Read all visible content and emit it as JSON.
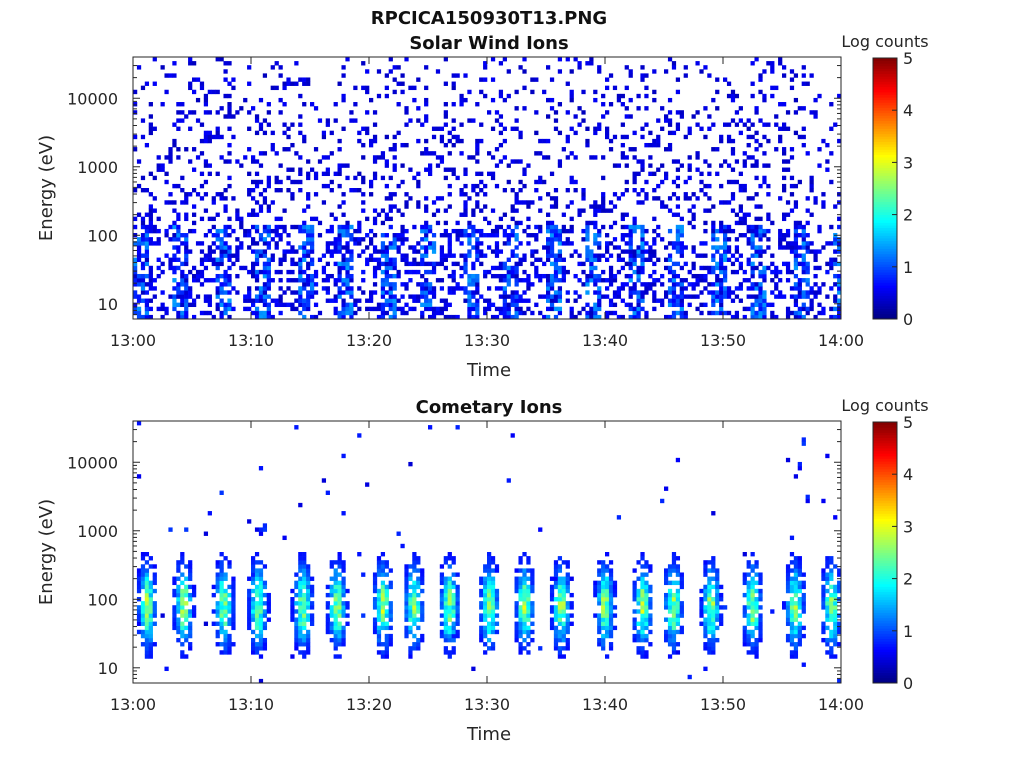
{
  "figure": {
    "title": "RPCICA150930T13.PNG"
  },
  "chart_data": [
    {
      "type": "heatmap",
      "title": "Solar Wind Ions",
      "xlabel": "Time",
      "ylabel": "Energy (eV)",
      "x_range": [
        "13:00",
        "14:00"
      ],
      "x_ticks": [
        "13:00",
        "13:10",
        "13:20",
        "13:30",
        "13:40",
        "13:50",
        "14:00"
      ],
      "y_scale": "log",
      "y_range": [
        6,
        40000
      ],
      "y_ticks": [
        10,
        100,
        1000,
        10000
      ],
      "y_tick_labels": [
        "10",
        "100",
        "1000",
        "10000"
      ],
      "colorbar": {
        "label": "Log counts",
        "range": [
          0,
          5
        ],
        "ticks": [
          "0",
          "1",
          "2",
          "3",
          "4",
          "5"
        ],
        "colormap": "jet"
      },
      "colormap_colors": [
        "#00007f",
        "#0000ff",
        "#007fff",
        "#00ffff",
        "#7fff7f",
        "#ffff00",
        "#ff7f00",
        "#ff0000",
        "#7f0000"
      ],
      "description_of_counts": {
        "sparse_background_log_counts": 0.3,
        "low_energy_band_eV": [
          6,
          150
        ],
        "low_energy_band_log_counts": [
          0.3,
          1.3
        ],
        "burst_interval_min": 3.5
      }
    },
    {
      "type": "heatmap",
      "title": "Cometary Ions",
      "xlabel": "Time",
      "ylabel": "Energy (eV)",
      "x_range": [
        "13:00",
        "14:00"
      ],
      "x_ticks": [
        "13:00",
        "13:10",
        "13:20",
        "13:30",
        "13:40",
        "13:50",
        "14:00"
      ],
      "y_scale": "log",
      "y_range": [
        6,
        40000
      ],
      "y_ticks": [
        10,
        100,
        1000,
        10000
      ],
      "y_tick_labels": [
        "10",
        "100",
        "1000",
        "10000"
      ],
      "colorbar": {
        "label": "Log counts",
        "range": [
          0,
          5
        ],
        "ticks": [
          "0",
          "1",
          "2",
          "3",
          "4",
          "5"
        ],
        "colormap": "jet"
      },
      "colormap_colors": [
        "#00007f",
        "#0000ff",
        "#007fff",
        "#00ffff",
        "#7fff7f",
        "#ffff00",
        "#ff7f00",
        "#ff0000",
        "#7f0000"
      ],
      "bursts_minutes": [
        1.2,
        4.3,
        7.7,
        10.6,
        14.4,
        17.3,
        21.2,
        23.8,
        26.8,
        30.2,
        33.2,
        36.3,
        40.0,
        43.2,
        45.8,
        49.0,
        52.5,
        56.1,
        59.2
      ],
      "description_of_counts": {
        "burst_energy_band_eV": [
          8,
          600
        ],
        "burst_peak_energy_eV": 80,
        "burst_peak_log_counts": 2.4
      }
    }
  ]
}
